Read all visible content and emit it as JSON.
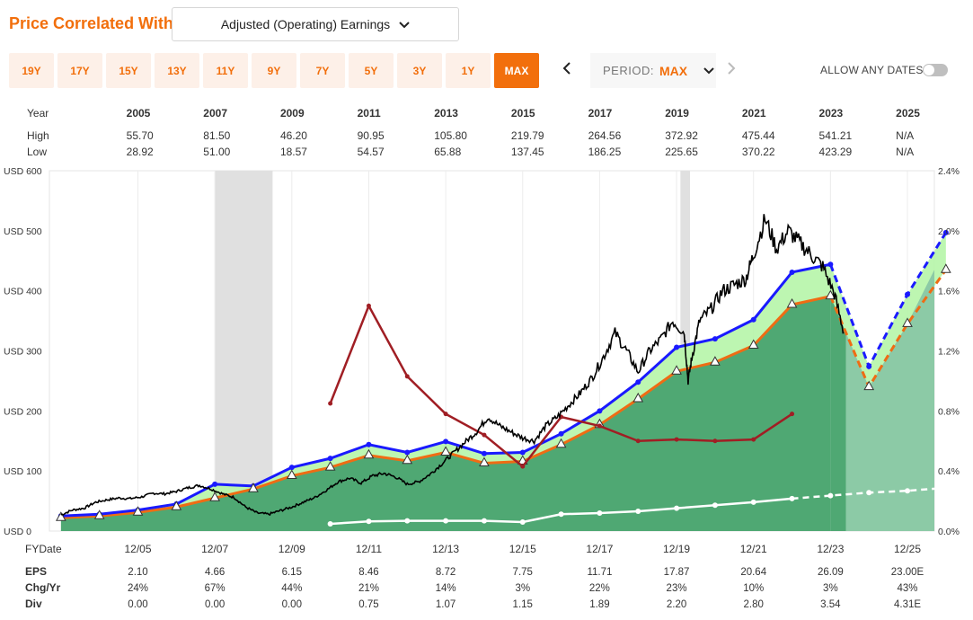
{
  "header": {
    "title": "Price Correlated With",
    "metric": "Adjusted (Operating) Earnings",
    "ranges": [
      "19Y",
      "17Y",
      "15Y",
      "13Y",
      "11Y",
      "9Y",
      "7Y",
      "5Y",
      "3Y",
      "1Y",
      "MAX"
    ],
    "active_range": "MAX",
    "period_label": "PERIOD:",
    "period_value": "MAX",
    "allow_dates_label": "ALLOW ANY DATES"
  },
  "colors": {
    "accent": "#f26f0c",
    "price": "#000000",
    "fair_value_blue": "#1a1aff",
    "earnings_orange": "#ef6c14",
    "dividend_yield": "#a01e24",
    "dividends": "#ffffff",
    "area_green": "#4fa873",
    "band_light_green": "#b6f5a8",
    "recession_gray": "#e0e0e0"
  },
  "high_low_table": {
    "row_labels": [
      "Year",
      "High",
      "Low"
    ],
    "years": [
      "2005",
      "2007",
      "2009",
      "2011",
      "2013",
      "2015",
      "2017",
      "2019",
      "2021",
      "2023",
      "2025"
    ],
    "high": [
      "55.70",
      "81.50",
      "46.20",
      "90.95",
      "105.80",
      "219.79",
      "264.56",
      "372.92",
      "475.44",
      "541.21",
      "N/A"
    ],
    "low": [
      "28.92",
      "51.00",
      "18.57",
      "54.57",
      "65.88",
      "137.45",
      "186.25",
      "225.65",
      "370.22",
      "423.29",
      "N/A"
    ]
  },
  "bottom_table": {
    "fy_label": "FYDate",
    "fy_ticks": [
      "12/05",
      "12/07",
      "12/09",
      "12/11",
      "12/13",
      "12/15",
      "12/17",
      "12/19",
      "12/21",
      "12/23",
      "12/25"
    ],
    "row_labels": [
      "EPS",
      "Chg/Yr",
      "Div"
    ],
    "eps": [
      "2.10",
      "4.66",
      "6.15",
      "8.46",
      "8.72",
      "7.75",
      "11.71",
      "17.87",
      "20.64",
      "26.09",
      "23.00E"
    ],
    "chg": [
      "24%",
      "67%",
      "44%",
      "21%",
      "14%",
      "3%",
      "22%",
      "23%",
      "10%",
      "3%",
      "43%"
    ],
    "div": [
      "0.00",
      "0.00",
      "0.00",
      "0.75",
      "1.07",
      "1.15",
      "1.89",
      "2.20",
      "2.80",
      "3.54",
      "4.31E"
    ]
  },
  "chart_data": {
    "type": "line",
    "title": "Price Correlated With Adjusted (Operating) Earnings",
    "x_unit": "fiscal year",
    "xlim": [
      2003.6,
      2026.6
    ],
    "left_axis": {
      "label_prefix": "USD",
      "ylim": [
        0,
        600
      ],
      "ticks": [
        "USD 0",
        "USD 100",
        "USD 200",
        "USD 300",
        "USD 400",
        "USD 500",
        "USD 600"
      ]
    },
    "right_axis": {
      "ylim": [
        0,
        2.4
      ],
      "ticks": [
        "0.0%",
        "0.4%",
        "0.8%",
        "1.2%",
        "1.6%",
        "2.0%",
        "2.4%"
      ]
    },
    "recessions": [
      [
        2007.9,
        2009.4
      ],
      [
        2020.0,
        2020.25
      ]
    ],
    "forecast_start": 2024.3,
    "series": [
      {
        "name": "Adjusted Earnings (valued)",
        "style": "orange line with triangle markers and green fill",
        "x": [
          2003.9,
          2004.9,
          2005.9,
          2006.9,
          2007.9,
          2008.9,
          2009.9,
          2010.9,
          2011.9,
          2012.9,
          2013.9,
          2014.9,
          2015.9,
          2016.9,
          2017.9,
          2018.9,
          2019.9,
          2020.9,
          2021.9,
          2022.9,
          2023.9
        ],
        "values": [
          22,
          25,
          31,
          40,
          55,
          70,
          92,
          106,
          126,
          117,
          131,
          113,
          116,
          144,
          177,
          220,
          266,
          281,
          309,
          377,
          391
        ],
        "forecast_x": [
          2024.9,
          2025.9,
          2026.9
        ],
        "forecast_values": [
          240,
          345,
          435
        ]
      },
      {
        "name": "Normal PE Value",
        "style": "blue line with dot markers",
        "x": [
          2003.9,
          2004.9,
          2005.9,
          2006.9,
          2007.9,
          2008.9,
          2009.9,
          2010.9,
          2011.9,
          2012.9,
          2013.9,
          2014.9,
          2015.9,
          2016.9,
          2017.9,
          2018.9,
          2019.9,
          2020.9,
          2021.9,
          2022.9,
          2023.9
        ],
        "values": [
          25,
          28,
          35,
          45,
          78,
          75,
          106,
          121,
          144,
          131,
          149,
          129,
          131,
          162,
          200,
          248,
          306,
          320,
          352,
          431,
          444
        ],
        "forecast_x": [
          2024.9,
          2025.9,
          2026.9
        ],
        "forecast_values": [
          274,
          394,
          497
        ]
      },
      {
        "name": "Dividend Yield",
        "axis": "right",
        "style": "dark red line",
        "x": [
          2010.9,
          2011.9,
          2012.9,
          2013.9,
          2014.9,
          2015.9,
          2016.9,
          2017.9,
          2018.9,
          2019.9,
          2020.9,
          2021.9,
          2022.9
        ],
        "values": [
          0.85,
          1.5,
          1.03,
          0.78,
          0.64,
          0.43,
          0.76,
          0.7,
          0.6,
          0.61,
          0.6,
          0.61,
          0.78
        ]
      },
      {
        "name": "Dividends",
        "style": "white line with dot markers",
        "x": [
          2010.9,
          2011.9,
          2012.9,
          2013.9,
          2014.9,
          2015.9,
          2016.9,
          2017.9,
          2018.9,
          2019.9,
          2020.9,
          2021.9,
          2022.9
        ],
        "values": [
          12,
          16,
          17,
          17,
          17,
          15,
          28,
          30,
          33,
          38,
          43,
          48,
          54
        ],
        "forecast_x": [
          2023.9,
          2024.9,
          2025.9,
          2026.9
        ],
        "forecast_values": [
          59,
          64,
          67,
          72
        ]
      },
      {
        "name": "Monthly Closing Price",
        "style": "black line",
        "x": [
          2003.9,
          2004.2,
          2004.5,
          2004.8,
          2005.1,
          2005.4,
          2005.7,
          2006.0,
          2006.3,
          2006.6,
          2006.9,
          2007.2,
          2007.5,
          2007.8,
          2008.1,
          2008.4,
          2008.7,
          2009.0,
          2009.3,
          2009.6,
          2009.9,
          2010.2,
          2010.5,
          2010.8,
          2011.1,
          2011.4,
          2011.7,
          2012.0,
          2012.3,
          2012.6,
          2012.9,
          2013.2,
          2013.5,
          2013.8,
          2014.1,
          2014.4,
          2014.7,
          2015.0,
          2015.3,
          2015.6,
          2015.9,
          2016.2,
          2016.5,
          2016.8,
          2017.1,
          2017.4,
          2017.7,
          2018.0,
          2018.3,
          2018.6,
          2018.9,
          2019.2,
          2019.5,
          2019.8,
          2020.1,
          2020.2,
          2020.3,
          2020.5,
          2020.8,
          2021.1,
          2021.4,
          2021.7,
          2021.9,
          2022.2,
          2022.5,
          2022.8,
          2023.1,
          2023.4,
          2023.7,
          2024.0,
          2024.25
        ],
        "values": [
          27,
          35,
          38,
          48,
          52,
          55,
          54,
          57,
          63,
          62,
          66,
          72,
          76,
          70,
          62,
          56,
          40,
          30,
          28,
          34,
          40,
          48,
          56,
          68,
          82,
          88,
          80,
          92,
          96,
          90,
          78,
          82,
          95,
          112,
          130,
          148,
          165,
          190,
          175,
          165,
          155,
          150,
          175,
          190,
          210,
          230,
          255,
          290,
          330,
          300,
          265,
          300,
          320,
          350,
          330,
          250,
          290,
          350,
          370,
          400,
          410,
          420,
          460,
          520,
          470,
          500,
          480,
          460,
          440,
          395,
          330
        ]
      }
    ]
  }
}
